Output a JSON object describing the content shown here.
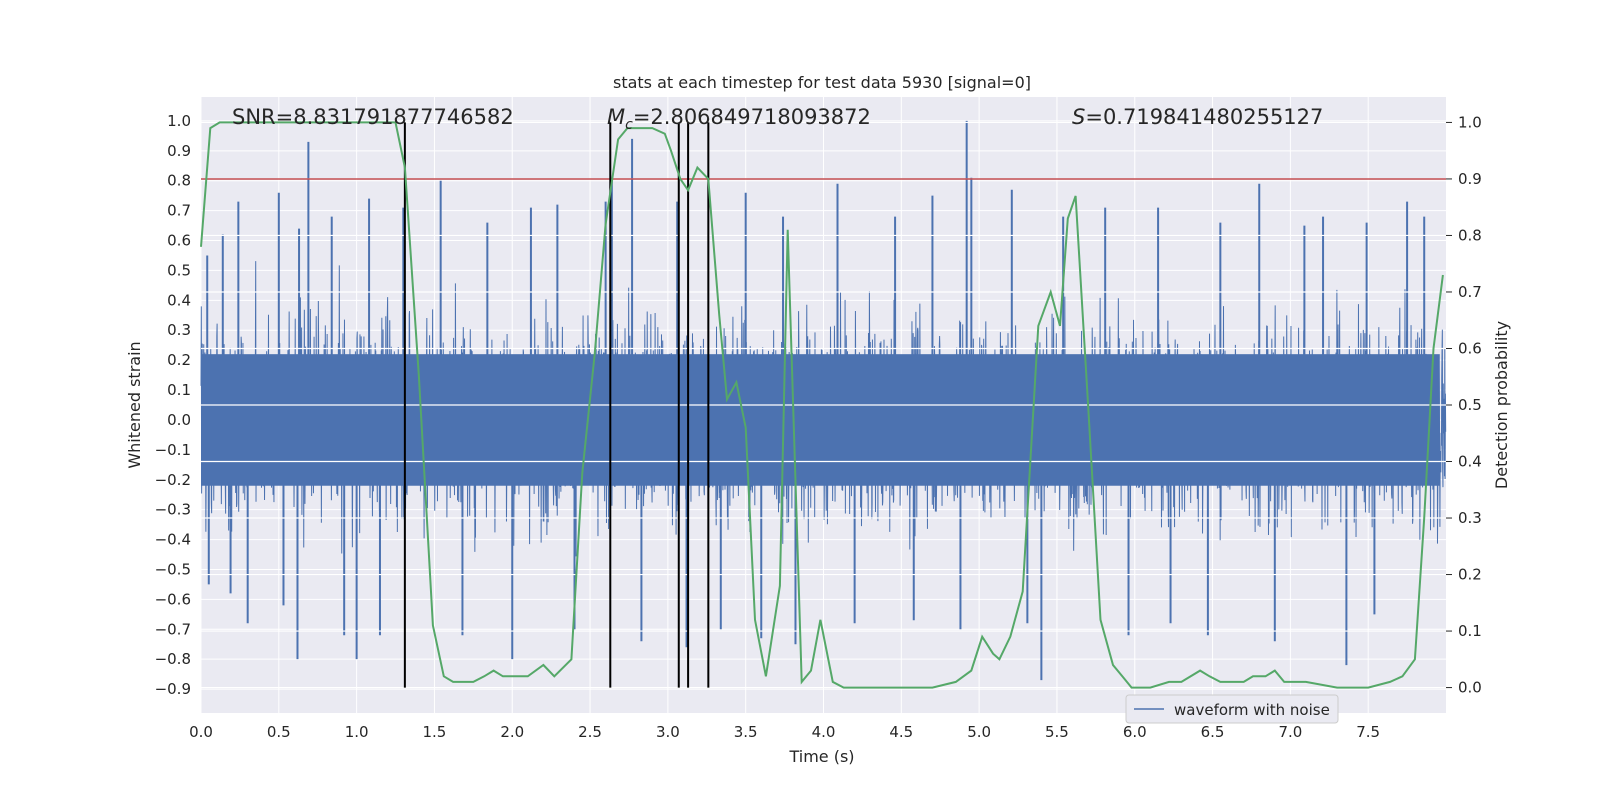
{
  "chart_data": {
    "type": "line",
    "title": "stats at each timestep for test data 5930 [signal=0]",
    "xlabel": "Time (s)",
    "ylabel": "Whitened strain",
    "y2label": "Detection probability",
    "xlim": [
      0.0,
      8.0
    ],
    "ylim": [
      -0.98,
      1.08
    ],
    "y2lim": [
      -0.045,
      1.045
    ],
    "x_ticks": [
      "0.0",
      "0.5",
      "1.0",
      "1.5",
      "2.0",
      "2.5",
      "3.0",
      "3.5",
      "4.0",
      "4.5",
      "5.0",
      "5.5",
      "6.0",
      "6.5",
      "7.0",
      "7.5"
    ],
    "y_ticks": [
      "-0.9",
      "-0.8",
      "-0.7",
      "-0.6",
      "-0.5",
      "-0.4",
      "-0.3",
      "-0.2",
      "-0.1",
      "0.0",
      "0.1",
      "0.2",
      "0.3",
      "0.4",
      "0.5",
      "0.6",
      "0.7",
      "0.8",
      "0.9",
      "1.0"
    ],
    "y2_ticks": [
      "0.0",
      "0.1",
      "0.2",
      "0.3",
      "0.4",
      "0.5",
      "0.6",
      "0.7",
      "0.8",
      "0.9",
      "1.0"
    ],
    "annotations": {
      "snr": "SNR=8.831791877746582",
      "mc_symbol": "M",
      "mc_sub": "c",
      "mc_value": "=2.806849718093872",
      "s_symbol": "S",
      "s_value": "=0.719841480255127"
    },
    "threshold": 0.9,
    "threshold_color": "#c44e52",
    "vlines_x": [
      1.31,
      2.63,
      3.07,
      3.13,
      3.26
    ],
    "legend": {
      "label": "waveform with noise",
      "position": "lower right"
    },
    "colors": {
      "waveform": "#4c72b0",
      "probability": "#55a868",
      "vlines": "#000000",
      "plot_bg": "#eaeaf2",
      "grid": "#ffffff"
    },
    "waveform_series": {
      "name": "waveform with noise",
      "sample_rate": 512,
      "amplitude_envelope_typical": 0.45,
      "peak_samples": [
        {
          "x": 0.04,
          "y": 0.55
        },
        {
          "x": 0.05,
          "y": -0.55
        },
        {
          "x": 0.14,
          "y": 0.62
        },
        {
          "x": 0.19,
          "y": -0.58
        },
        {
          "x": 0.24,
          "y": 0.73
        },
        {
          "x": 0.3,
          "y": -0.68
        },
        {
          "x": 0.5,
          "y": 0.76
        },
        {
          "x": 0.53,
          "y": -0.62
        },
        {
          "x": 0.63,
          "y": 0.64
        },
        {
          "x": 0.69,
          "y": 0.93
        },
        {
          "x": 0.62,
          "y": -0.8
        },
        {
          "x": 0.84,
          "y": 0.68
        },
        {
          "x": 0.92,
          "y": -0.72
        },
        {
          "x": 1.0,
          "y": -0.8
        },
        {
          "x": 1.08,
          "y": 0.74
        },
        {
          "x": 1.15,
          "y": -0.72
        },
        {
          "x": 1.3,
          "y": 0.71
        },
        {
          "x": 1.54,
          "y": 0.8
        },
        {
          "x": 1.68,
          "y": -0.72
        },
        {
          "x": 1.84,
          "y": 0.66
        },
        {
          "x": 2.0,
          "y": -0.8
        },
        {
          "x": 2.12,
          "y": 0.71
        },
        {
          "x": 2.29,
          "y": 0.72
        },
        {
          "x": 2.4,
          "y": -0.7
        },
        {
          "x": 2.6,
          "y": 0.73
        },
        {
          "x": 2.64,
          "y": 0.8
        },
        {
          "x": 2.77,
          "y": 0.94
        },
        {
          "x": 2.83,
          "y": -0.74
        },
        {
          "x": 3.06,
          "y": 0.73
        },
        {
          "x": 3.12,
          "y": -0.76
        },
        {
          "x": 3.34,
          "y": -0.7
        },
        {
          "x": 3.5,
          "y": 0.76
        },
        {
          "x": 3.6,
          "y": -0.73
        },
        {
          "x": 3.74,
          "y": 0.68
        },
        {
          "x": 3.82,
          "y": -0.75
        },
        {
          "x": 4.09,
          "y": 0.79
        },
        {
          "x": 4.2,
          "y": -0.68
        },
        {
          "x": 4.46,
          "y": 0.68
        },
        {
          "x": 4.58,
          "y": -0.67
        },
        {
          "x": 4.7,
          "y": 0.75
        },
        {
          "x": 4.88,
          "y": -0.7
        },
        {
          "x": 4.92,
          "y": 1.0
        },
        {
          "x": 4.95,
          "y": 0.81
        },
        {
          "x": 5.21,
          "y": 0.77
        },
        {
          "x": 5.31,
          "y": -0.68
        },
        {
          "x": 5.4,
          "y": -0.87
        },
        {
          "x": 5.54,
          "y": 0.68
        },
        {
          "x": 5.81,
          "y": 0.71
        },
        {
          "x": 5.96,
          "y": -0.72
        },
        {
          "x": 6.15,
          "y": 0.71
        },
        {
          "x": 6.23,
          "y": -0.68
        },
        {
          "x": 6.47,
          "y": -0.72
        },
        {
          "x": 6.55,
          "y": 0.66
        },
        {
          "x": 6.8,
          "y": 0.79
        },
        {
          "x": 6.9,
          "y": -0.74
        },
        {
          "x": 7.09,
          "y": 0.65
        },
        {
          "x": 7.21,
          "y": 0.68
        },
        {
          "x": 7.36,
          "y": -0.82
        },
        {
          "x": 7.49,
          "y": 0.66
        },
        {
          "x": 7.54,
          "y": -0.65
        },
        {
          "x": 7.75,
          "y": 0.73
        },
        {
          "x": 7.86,
          "y": 0.68
        }
      ]
    },
    "probability_series": {
      "name": "detection probability",
      "x": [
        0.0,
        0.06,
        0.12,
        0.2,
        0.4,
        0.6,
        0.8,
        1.0,
        1.15,
        1.25,
        1.31,
        1.4,
        1.49,
        1.56,
        1.62,
        1.75,
        1.82,
        1.88,
        1.94,
        2.0,
        2.1,
        2.2,
        2.27,
        2.38,
        2.45,
        2.53,
        2.6,
        2.68,
        2.74,
        2.8,
        2.9,
        2.98,
        3.02,
        3.08,
        3.13,
        3.19,
        3.26,
        3.33,
        3.38,
        3.44,
        3.5,
        3.56,
        3.63,
        3.72,
        3.77,
        3.86,
        3.92,
        3.98,
        4.06,
        4.13,
        4.3,
        4.5,
        4.7,
        4.85,
        4.95,
        5.02,
        5.09,
        5.13,
        5.2,
        5.28,
        5.38,
        5.46,
        5.52,
        5.57,
        5.62,
        5.7,
        5.78,
        5.86,
        5.92,
        5.98,
        6.05,
        6.1,
        6.22,
        6.3,
        6.42,
        6.48,
        6.55,
        6.6,
        6.7,
        6.76,
        6.84,
        6.9,
        6.96,
        7.1,
        7.3,
        7.5,
        7.64,
        7.72,
        7.8,
        7.86,
        7.92,
        7.98
      ],
      "y": [
        0.78,
        0.99,
        1.0,
        1.0,
        1.0,
        1.0,
        1.0,
        1.0,
        1.0,
        1.0,
        0.92,
        0.55,
        0.11,
        0.02,
        0.01,
        0.01,
        0.02,
        0.03,
        0.02,
        0.02,
        0.02,
        0.04,
        0.02,
        0.05,
        0.38,
        0.59,
        0.82,
        0.97,
        0.99,
        0.99,
        0.99,
        0.98,
        0.95,
        0.9,
        0.88,
        0.92,
        0.9,
        0.66,
        0.51,
        0.54,
        0.46,
        0.12,
        0.02,
        0.18,
        0.81,
        0.01,
        0.03,
        0.12,
        0.01,
        0.0,
        0.0,
        0.0,
        0.0,
        0.01,
        0.03,
        0.09,
        0.06,
        0.05,
        0.09,
        0.17,
        0.64,
        0.7,
        0.64,
        0.83,
        0.87,
        0.5,
        0.12,
        0.04,
        0.02,
        0.0,
        0.0,
        0.0,
        0.01,
        0.01,
        0.03,
        0.02,
        0.01,
        0.01,
        0.01,
        0.02,
        0.02,
        0.03,
        0.01,
        0.01,
        0.0,
        0.0,
        0.01,
        0.02,
        0.05,
        0.3,
        0.6,
        0.73
      ]
    }
  }
}
